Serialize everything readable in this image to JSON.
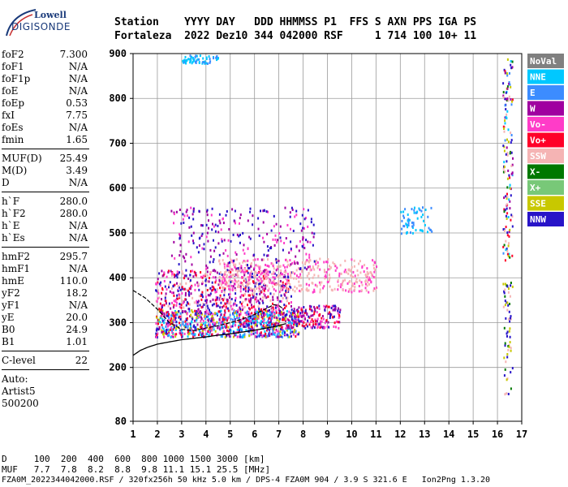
{
  "logo": {
    "line1": "Lowell",
    "line2": "DIGISONDE"
  },
  "header": {
    "line1": "Station    YYYY DAY   DDD HHMMSS P1  FFS S AXN PPS IGA PS",
    "line2": "Fortaleza  2022 Dez10 344 042000 RSF     1 714 100 10+ 11"
  },
  "params_group1": [
    {
      "label": "foF2",
      "value": "7.300"
    },
    {
      "label": "foF1",
      "value": "N/A"
    },
    {
      "label": "foF1p",
      "value": "N/A"
    },
    {
      "label": "foE",
      "value": "N/A"
    },
    {
      "label": "foEp",
      "value": "0.53"
    },
    {
      "label": "fxI",
      "value": "7.75"
    },
    {
      "label": "foEs",
      "value": "N/A"
    },
    {
      "label": "fmin",
      "value": "1.65"
    }
  ],
  "params_group2": [
    {
      "label": "MUF(D)",
      "value": "25.49"
    },
    {
      "label": "M(D)",
      "value": "3.49"
    },
    {
      "label": "D",
      "value": "N/A"
    }
  ],
  "params_group3": [
    {
      "label": "h`F",
      "value": "280.0"
    },
    {
      "label": "h`F2",
      "value": "280.0"
    },
    {
      "label": "h`E",
      "value": "N/A"
    },
    {
      "label": "h`Es",
      "value": "N/A"
    }
  ],
  "params_group4": [
    {
      "label": "hmF2",
      "value": "295.7"
    },
    {
      "label": "hmF1",
      "value": "N/A"
    },
    {
      "label": "hmE",
      "value": "110.0"
    },
    {
      "label": "yF2",
      "value": "18.2"
    },
    {
      "label": "yF1",
      "value": "N/A"
    },
    {
      "label": "yE",
      "value": "20.0"
    },
    {
      "label": "B0",
      "value": "24.9"
    },
    {
      "label": "B1",
      "value": "1.01"
    }
  ],
  "params_group5": [
    {
      "label": "C-level",
      "value": "22"
    }
  ],
  "auto_lines": [
    "Auto:",
    "Artist5",
    "500200"
  ],
  "bottom": {
    "line1": "D     100  200  400  600  800 1000 1500 3000 [km]",
    "line2": "MUF   7.7  7.8  8.2  8.8  9.8 11.1 15.1 25.5 [MHz]",
    "line3": "FZA0M_2022344042000.RSF / 320fx256h 50 kHz 5.0 km / DPS-4 FZA0M 904 / 3.9 S 321.6 E   Ion2Png 1.3.20"
  },
  "legend": [
    {
      "label": "NoVal",
      "color": "#808080",
      "text_color": "#ffffff"
    },
    {
      "label": "NNE",
      "color": "#00c8ff",
      "text_color": "#ffffff"
    },
    {
      "label": "E",
      "color": "#3c8cff",
      "text_color": "#ffffff"
    },
    {
      "label": "W",
      "color": "#a000a0",
      "text_color": "#ffffff"
    },
    {
      "label": "Vo-",
      "color": "#ff3cc8",
      "text_color": "#ffffff"
    },
    {
      "label": "Vo+",
      "color": "#ff0028",
      "text_color": "#ffffff"
    },
    {
      "label": "SSW",
      "color": "#f5b4b4",
      "text_color": "#ffffff"
    },
    {
      "label": "X-",
      "color": "#007800",
      "text_color": "#ffffff"
    },
    {
      "label": "X+",
      "color": "#78c878",
      "text_color": "#ffffff"
    },
    {
      "label": "SSE",
      "color": "#c8c800",
      "text_color": "#ffffff"
    },
    {
      "label": "NNW",
      "color": "#2814c8",
      "text_color": "#ffffff"
    }
  ],
  "chart_data": {
    "type": "scatter",
    "xlim": [
      1,
      17
    ],
    "ylim": [
      80,
      900
    ],
    "x_ticks": [
      1,
      2,
      3,
      4,
      5,
      6,
      7,
      8,
      9,
      10,
      11,
      12,
      13,
      14,
      15,
      16,
      17
    ],
    "y_ticks": [
      80,
      200,
      300,
      400,
      500,
      600,
      700,
      800,
      900
    ],
    "grid": true,
    "legend_position": "right",
    "profile_curve": {
      "x": [
        1.0,
        1.3,
        1.6,
        2.0,
        2.5,
        3.0,
        3.5,
        4.0,
        4.5,
        5.0,
        5.5,
        6.0,
        6.5,
        7.0,
        7.3
      ],
      "y": [
        227,
        238,
        245,
        252,
        257,
        262,
        265,
        268,
        272,
        275,
        279,
        283,
        288,
        293,
        298
      ]
    },
    "trace_curve": {
      "x": [
        1.0,
        1.5,
        2.0,
        2.5,
        3.0,
        3.5,
        4.0,
        4.5,
        5.0,
        5.5,
        6.0,
        6.5,
        6.8,
        7.0,
        7.2
      ],
      "y": [
        372,
        355,
        330,
        300,
        285,
        282,
        288,
        293,
        300,
        308,
        318,
        332,
        340,
        338,
        330
      ]
    },
    "echo_clusters": [
      {
        "x": [
          1.9,
          7.8
        ],
        "y": [
          270,
          330
        ],
        "n": 900,
        "colors": [
          "#a000a0",
          "#ff3cc8",
          "#ff0028",
          "#2814c8",
          "#3c8cff",
          "#c8c800",
          "#00c8ff"
        ]
      },
      {
        "x": [
          1.9,
          7.5
        ],
        "y": [
          330,
          420
        ],
        "n": 550,
        "colors": [
          "#a000a0",
          "#ff3cc8",
          "#ff0028",
          "#f5b4b4",
          "#2814c8"
        ]
      },
      {
        "x": [
          4.5,
          11.0
        ],
        "y": [
          370,
          445
        ],
        "n": 450,
        "colors": [
          "#f5b4b4",
          "#f5b4b4",
          "#ff3cc8"
        ]
      },
      {
        "x": [
          2.5,
          8.5
        ],
        "y": [
          420,
          560
        ],
        "n": 260,
        "colors": [
          "#a000a0",
          "#ff3cc8",
          "#2814c8"
        ]
      },
      {
        "x": [
          3.0,
          4.5
        ],
        "y": [
          880,
          900
        ],
        "n": 60,
        "colors": [
          "#00c8ff",
          "#3c8cff"
        ]
      },
      {
        "x": [
          12.0,
          13.3
        ],
        "y": [
          500,
          560
        ],
        "n": 60,
        "colors": [
          "#00c8ff",
          "#3c8cff"
        ]
      },
      {
        "x": [
          16.2,
          16.6
        ],
        "y": [
          440,
          900
        ],
        "n": 140,
        "colors": [
          "#007800",
          "#c8c800",
          "#a000a0",
          "#ff0028",
          "#2814c8",
          "#3c8cff",
          "#f5b4b4",
          "#00c8ff"
        ]
      },
      {
        "x": [
          16.2,
          16.6
        ],
        "y": [
          140,
          400
        ],
        "n": 60,
        "colors": [
          "#007800",
          "#2814c8",
          "#c8c800",
          "#f5b4b4"
        ]
      },
      {
        "x": [
          7.5,
          9.5
        ],
        "y": [
          290,
          340
        ],
        "n": 160,
        "colors": [
          "#ff0028",
          "#ff3cc8",
          "#2814c8",
          "#a000a0"
        ]
      }
    ]
  }
}
